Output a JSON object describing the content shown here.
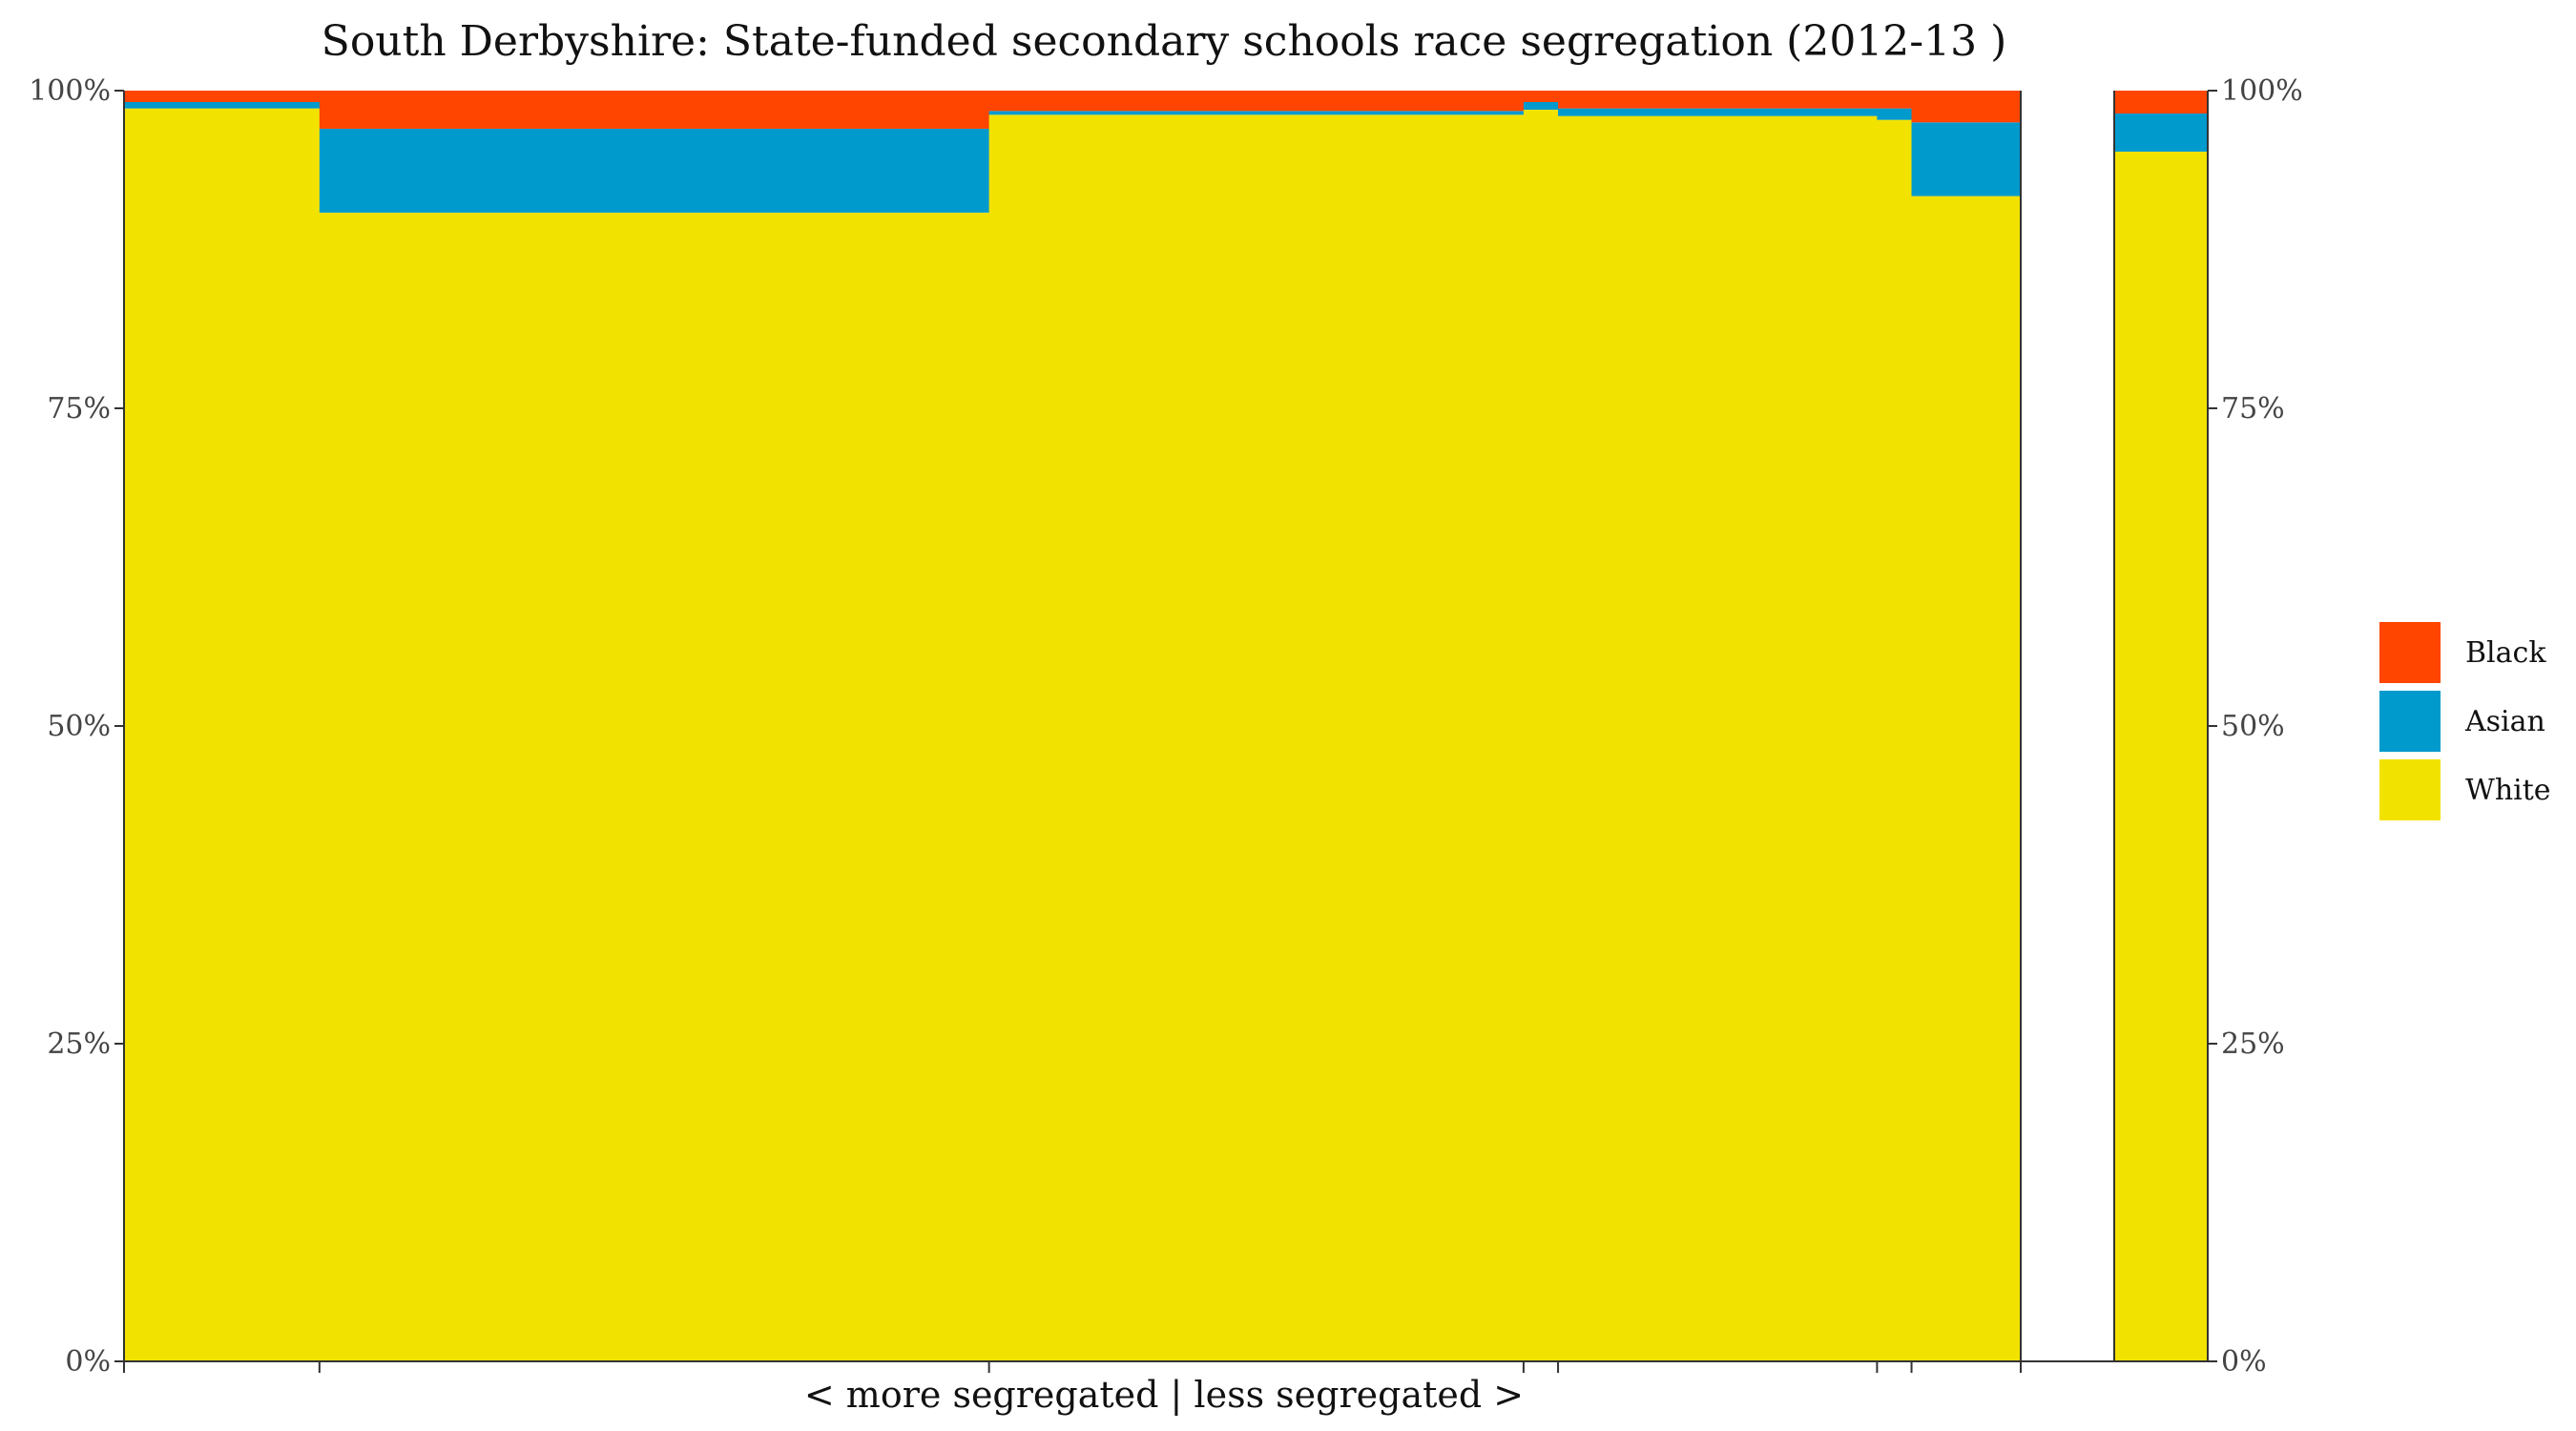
{
  "chart_data": {
    "type": "bar",
    "title": "South Derbyshire: State-funded secondary schools race segregation (2012-13 )",
    "xlabel": "< more segregated | less segregated >",
    "ylabel": "",
    "ylim": [
      0,
      100
    ],
    "y_ticks": [
      "0%",
      "25%",
      "50%",
      "75%",
      "100%"
    ],
    "y_tick_values": [
      0,
      25,
      50,
      75,
      100
    ],
    "legend_position": "right",
    "stacking": "percent",
    "variable_width": true,
    "colors": {
      "Black": "#FF4500",
      "Asian": "#009ACD",
      "White": "#F2E200"
    },
    "legend": [
      {
        "name": "Black",
        "color": "#FF4500"
      },
      {
        "name": "Asian",
        "color": "#009ACD"
      },
      {
        "name": "White",
        "color": "#F2E200"
      }
    ],
    "schools": [
      {
        "width": 6.8,
        "White": 98.6,
        "Asian": 0.5,
        "Black": 0.9
      },
      {
        "width": 23.3,
        "White": 90.4,
        "Asian": 6.6,
        "Black": 3.0
      },
      {
        "width": 18.6,
        "White": 98.1,
        "Asian": 0.3,
        "Black": 1.6
      },
      {
        "width": 1.2,
        "White": 98.5,
        "Asian": 0.6,
        "Black": 0.9
      },
      {
        "width": 11.1,
        "White": 98.0,
        "Asian": 0.6,
        "Black": 1.4
      },
      {
        "width": 1.2,
        "White": 97.7,
        "Asian": 0.9,
        "Black": 1.4
      },
      {
        "width": 3.8,
        "White": 91.7,
        "Asian": 5.8,
        "Black": 2.5
      }
    ],
    "overall": {
      "White": 95.2,
      "Asian": 3.0,
      "Black": 1.8
    }
  }
}
